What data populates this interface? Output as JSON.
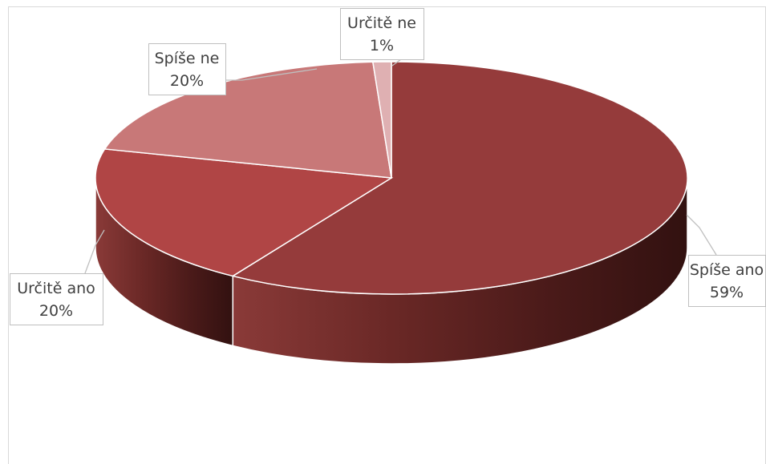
{
  "chart_data": {
    "type": "pie",
    "style": "3d",
    "title": "",
    "slices": [
      {
        "label": "Spíše ano",
        "value": 59,
        "percent_label": "59%",
        "color": "#953b3b"
      },
      {
        "label": "Určitě ano",
        "value": 20,
        "percent_label": "20%",
        "color": "#b04545"
      },
      {
        "label": "Spíše ne",
        "value": 20,
        "percent_label": "20%",
        "color": "#c87878"
      },
      {
        "label": "Určitě ne",
        "value": 1,
        "percent_label": "1%",
        "color": "#dfb0b2"
      }
    ],
    "data_labels": "callout",
    "legend": "none"
  }
}
